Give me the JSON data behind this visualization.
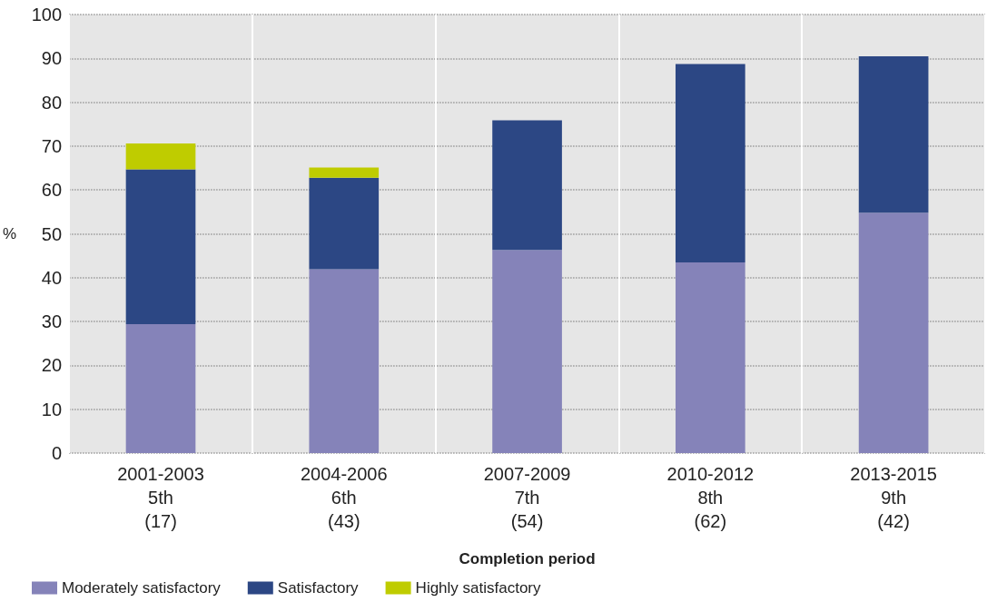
{
  "chart_data": {
    "type": "bar",
    "stacked": true,
    "xlabel": "Completion period",
    "ylabel": "%",
    "categories": [
      "2001-2003\n5th\n(17)",
      "2004-2006\n6th\n(43)",
      "2007-2009\n7th\n(54)",
      "2010-2012\n8th\n(62)",
      "2013-2015\n9th\n(42)"
    ],
    "series": [
      {
        "name": "Moderately satisfactory",
        "color": "#8583b9",
        "values": [
          29.4,
          41.9,
          46.3,
          43.5,
          54.8
        ]
      },
      {
        "name": "Satisfactory",
        "color": "#2c4784",
        "values": [
          35.3,
          20.9,
          29.6,
          45.2,
          35.7
        ]
      },
      {
        "name": "Highly satisfactory",
        "color": "#bfcc00",
        "values": [
          5.9,
          2.3,
          0,
          0,
          0
        ]
      }
    ],
    "ylim": [
      0,
      100
    ],
    "yticks": [
      0,
      10,
      20,
      30,
      40,
      50,
      60,
      70,
      80,
      90,
      100
    ],
    "grid": true,
    "legend": "bottom left"
  }
}
